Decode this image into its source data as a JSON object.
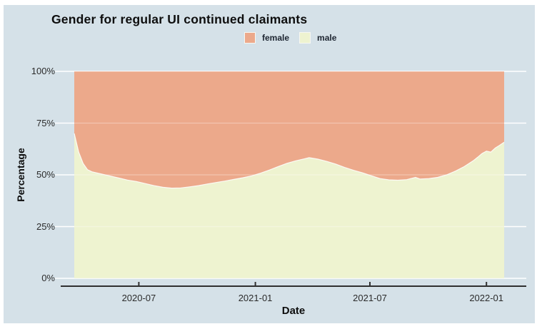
{
  "card": {
    "background_color": "#d5e1e8"
  },
  "chart_data": {
    "type": "area",
    "stacked": true,
    "title": "Gender for regular UI continued claimants",
    "xlabel": "Date",
    "ylabel": "Percentage",
    "ylim": [
      0,
      100
    ],
    "grid": "horizontal-white",
    "grid_color": "#ffffff",
    "axis_color": "#303030",
    "legend_position": "top-center",
    "y_ticks": [
      0,
      25,
      50,
      75,
      100
    ],
    "y_tick_labels": [
      "0%",
      "25%",
      "50%",
      "75%",
      "100%"
    ],
    "x_tick_labels": [
      "2020-07",
      "2021-01",
      "2021-07",
      "2022-01"
    ],
    "x": [
      "2020-03-21",
      "2020-03-28",
      "2020-04-04",
      "2020-04-11",
      "2020-04-18",
      "2020-05-02",
      "2020-05-16",
      "2020-05-30",
      "2020-06-13",
      "2020-06-27",
      "2020-07-11",
      "2020-07-25",
      "2020-08-08",
      "2020-08-22",
      "2020-09-05",
      "2020-09-19",
      "2020-10-03",
      "2020-10-17",
      "2020-10-31",
      "2020-11-14",
      "2020-11-28",
      "2020-12-12",
      "2020-12-26",
      "2021-01-09",
      "2021-01-23",
      "2021-02-06",
      "2021-02-20",
      "2021-03-06",
      "2021-03-20",
      "2021-03-27",
      "2021-04-10",
      "2021-04-24",
      "2021-05-08",
      "2021-05-22",
      "2021-06-05",
      "2021-06-19",
      "2021-07-03",
      "2021-07-17",
      "2021-07-31",
      "2021-08-14",
      "2021-08-28",
      "2021-09-11",
      "2021-09-18",
      "2021-10-02",
      "2021-10-16",
      "2021-10-30",
      "2021-11-13",
      "2021-11-27",
      "2021-12-11",
      "2021-12-18",
      "2021-12-25",
      "2022-01-01",
      "2022-01-08",
      "2022-01-15",
      "2022-01-22",
      "2022-01-29"
    ],
    "series": [
      {
        "name": "female",
        "color": "#eca98b",
        "values": [
          30.0,
          39.0,
          44.5,
          47.5,
          48.5,
          49.5,
          50.5,
          51.5,
          52.5,
          53.2,
          54.2,
          55.2,
          56.0,
          56.4,
          56.3,
          55.8,
          55.2,
          54.4,
          53.7,
          53.0,
          52.2,
          51.4,
          50.5,
          49.2,
          47.7,
          46.0,
          44.4,
          43.2,
          42.2,
          41.7,
          42.4,
          43.5,
          44.8,
          46.4,
          47.8,
          49.0,
          50.4,
          51.8,
          52.4,
          52.6,
          52.3,
          51.2,
          52.0,
          51.8,
          51.2,
          50.0,
          48.2,
          46.0,
          43.2,
          41.5,
          39.7,
          38.5,
          39.0,
          37.0,
          35.7,
          34.2
        ]
      },
      {
        "name": "male",
        "color": "#eef3d0",
        "values": [
          70.0,
          61.0,
          55.5,
          52.5,
          51.5,
          50.5,
          49.5,
          48.5,
          47.5,
          46.8,
          45.8,
          44.8,
          44.0,
          43.6,
          43.7,
          44.2,
          44.8,
          45.6,
          46.3,
          47.0,
          47.8,
          48.6,
          49.5,
          50.8,
          52.3,
          54.0,
          55.6,
          56.8,
          57.8,
          58.3,
          57.6,
          56.5,
          55.2,
          53.6,
          52.2,
          51.0,
          49.6,
          48.2,
          47.6,
          47.4,
          47.7,
          48.8,
          48.0,
          48.2,
          48.8,
          50.0,
          51.8,
          54.0,
          56.8,
          58.5,
          60.3,
          61.5,
          61.0,
          63.0,
          64.3,
          65.8
        ]
      }
    ]
  }
}
